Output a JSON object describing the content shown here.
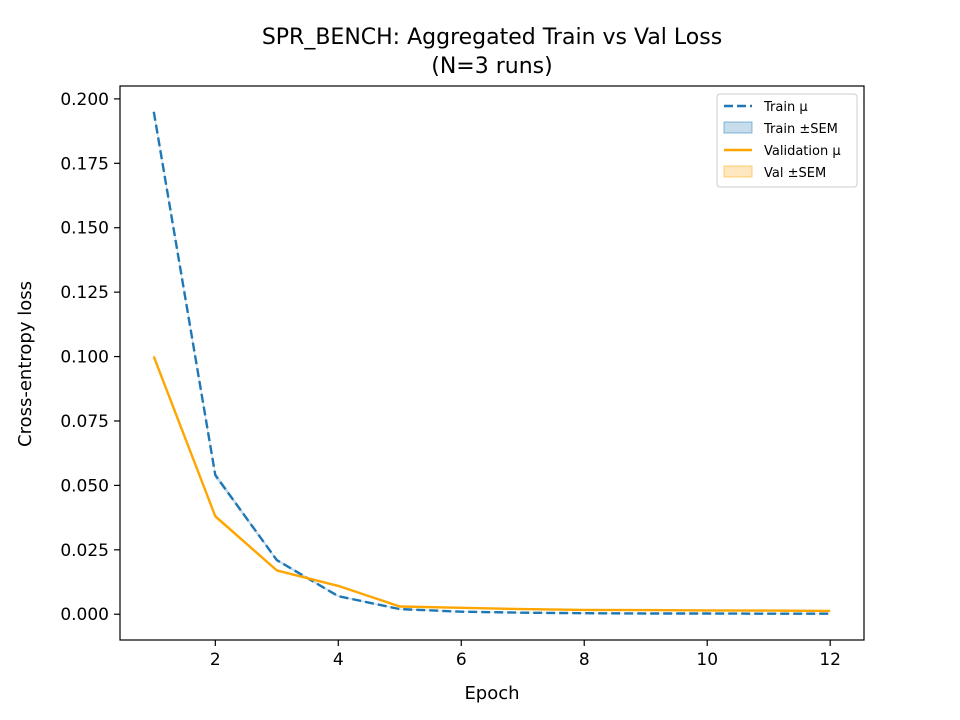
{
  "chart_data": {
    "type": "line",
    "title": "SPR_BENCH: Aggregated Train vs Val Loss",
    "subtitle": "(N=3 runs)",
    "xlabel": "Epoch",
    "ylabel": "Cross-entropy loss",
    "x": [
      1,
      2,
      3,
      4,
      5,
      6,
      7,
      8,
      9,
      10,
      11,
      12
    ],
    "xlim": [
      0.45,
      12.55
    ],
    "ylim": [
      -0.01,
      0.205
    ],
    "xticks": [
      2,
      4,
      6,
      8,
      10,
      12
    ],
    "yticks": [
      0.0,
      0.025,
      0.05,
      0.075,
      0.1,
      0.125,
      0.15,
      0.175,
      0.2
    ],
    "ytick_labels": [
      "0.000",
      "0.025",
      "0.050",
      "0.075",
      "0.100",
      "0.125",
      "0.150",
      "0.175",
      "0.200"
    ],
    "grid": false,
    "legend_position": "top-right",
    "series": [
      {
        "name": "Train μ",
        "band_name": "Train ±SEM",
        "color": "#1f77b4",
        "dash": "dashed",
        "values": [
          0.195,
          0.054,
          0.021,
          0.007,
          0.002,
          0.001,
          0.0006,
          0.0004,
          0.0003,
          0.0003,
          0.0002,
          0.0002
        ],
        "sem": [
          0.001,
          0.001,
          0.0005,
          0.0003,
          0.0002,
          0.0001,
          0.0001,
          0.0001,
          0.0001,
          0.0001,
          0.0001,
          0.0001
        ]
      },
      {
        "name": "Validation μ",
        "band_name": "Val ±SEM",
        "color": "#ffa500",
        "dash": "solid",
        "values": [
          0.1,
          0.038,
          0.017,
          0.011,
          0.003,
          0.0025,
          0.002,
          0.0017,
          0.0016,
          0.0015,
          0.0014,
          0.0013
        ],
        "sem": [
          0.001,
          0.0008,
          0.0004,
          0.0003,
          0.0002,
          0.0001,
          0.0001,
          0.0001,
          0.0001,
          0.0001,
          0.0001,
          0.0001
        ]
      }
    ]
  }
}
